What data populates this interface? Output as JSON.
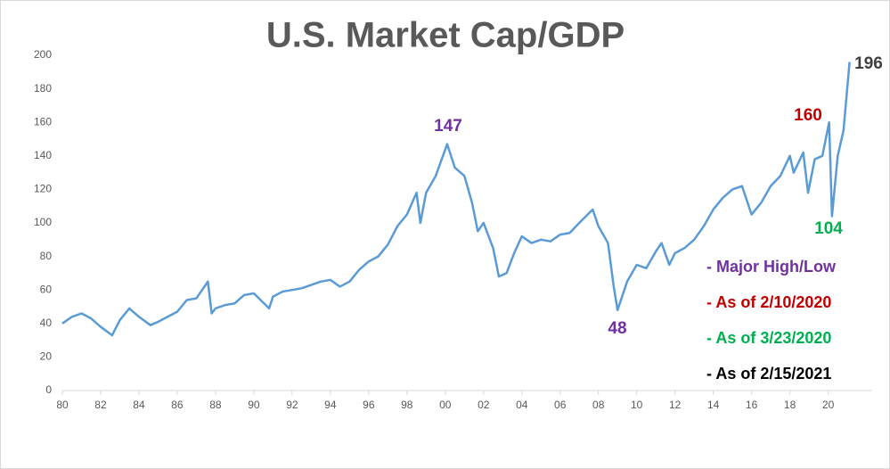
{
  "chart_data": {
    "type": "line",
    "title": "U.S. Market Cap/GDP",
    "x": [
      1980,
      1980.5,
      1981,
      1981.5,
      1982,
      1982.6,
      1983,
      1983.5,
      1984,
      1984.6,
      1985,
      1985.5,
      1986,
      1986.5,
      1987,
      1987.6,
      1987.8,
      1988,
      1988.5,
      1989,
      1989.5,
      1990,
      1990.8,
      1991,
      1991.5,
      1992,
      1992.5,
      1993,
      1993.5,
      1994,
      1994.5,
      1995,
      1995.5,
      1996,
      1996.5,
      1997,
      1997.5,
      1998,
      1998.5,
      1998.7,
      1999,
      1999.5,
      2000.1,
      2000.5,
      2001,
      2001.4,
      2001.7,
      2002,
      2002.5,
      2002.8,
      2003.2,
      2003.6,
      2004,
      2004.5,
      2005,
      2005.5,
      2006,
      2006.5,
      2007,
      2007.7,
      2008,
      2008.5,
      2008.8,
      2009,
      2009.5,
      2010,
      2010.5,
      2011,
      2011.3,
      2011.7,
      2012,
      2012.5,
      2013,
      2013.5,
      2014,
      2014.5,
      2015,
      2015.5,
      2016,
      2016.5,
      2017,
      2017.5,
      2018,
      2018.2,
      2018.7,
      2018.95,
      2019.3,
      2019.7,
      2020.05,
      2020.2,
      2020.5,
      2020.8,
      2021.12
    ],
    "series": [
      {
        "name": "Market Cap/GDP",
        "color": "#5b9bd5",
        "values": [
          40,
          44,
          46,
          43,
          38,
          33,
          42,
          49,
          44,
          39,
          41,
          44,
          47,
          54,
          55,
          65,
          46,
          49,
          51,
          52,
          57,
          58,
          49,
          56,
          59,
          60,
          61,
          63,
          65,
          66,
          62,
          65,
          72,
          77,
          80,
          87,
          98,
          105,
          118,
          100,
          118,
          128,
          147,
          133,
          128,
          112,
          95,
          100,
          85,
          68,
          70,
          82,
          92,
          88,
          90,
          89,
          93,
          94,
          100,
          108,
          98,
          88,
          62,
          48,
          65,
          75,
          73,
          83,
          88,
          75,
          82,
          85,
          90,
          98,
          108,
          115,
          120,
          122,
          105,
          112,
          122,
          128,
          140,
          130,
          142,
          118,
          138,
          140,
          160,
          104,
          140,
          155,
          196
        ]
      }
    ],
    "xlim": [
      1980,
      2022.3
    ],
    "xticks": [
      {
        "value": 1980,
        "label": "80"
      },
      {
        "value": 1982,
        "label": "82"
      },
      {
        "value": 1984,
        "label": "84"
      },
      {
        "value": 1986,
        "label": "86"
      },
      {
        "value": 1988,
        "label": "88"
      },
      {
        "value": 1990,
        "label": "90"
      },
      {
        "value": 1992,
        "label": "92"
      },
      {
        "value": 1994,
        "label": "94"
      },
      {
        "value": 1996,
        "label": "96"
      },
      {
        "value": 1998,
        "label": "98"
      },
      {
        "value": 2000,
        "label": "00"
      },
      {
        "value": 2002,
        "label": "02"
      },
      {
        "value": 2004,
        "label": "04"
      },
      {
        "value": 2006,
        "label": "06"
      },
      {
        "value": 2008,
        "label": "08"
      },
      {
        "value": 2010,
        "label": "10"
      },
      {
        "value": 2012,
        "label": "12"
      },
      {
        "value": 2014,
        "label": "14"
      },
      {
        "value": 2016,
        "label": "16"
      },
      {
        "value": 2018,
        "label": "18"
      },
      {
        "value": 2020,
        "label": "20"
      }
    ],
    "ylim": [
      0,
      200
    ],
    "yticks": [
      0,
      20,
      40,
      60,
      80,
      100,
      120,
      140,
      160,
      180,
      200
    ],
    "annotations": [
      {
        "text": "147",
        "color": "#7030a0"
      },
      {
        "text": "48",
        "color": "#7030a0"
      },
      {
        "text": "160",
        "color": "#c00000"
      },
      {
        "text": "104",
        "color": "#00b050"
      },
      {
        "text": "196",
        "color": "#404040"
      }
    ],
    "notes": [
      {
        "text": "- Major High/Low",
        "color": "#7030a0"
      },
      {
        "text": "- As of 2/10/2020",
        "color": "#c00000"
      },
      {
        "text": "- As of 3/23/2020",
        "color": "#00b050"
      },
      {
        "text": "- As of 2/15/2021",
        "color": "#000000"
      }
    ]
  }
}
